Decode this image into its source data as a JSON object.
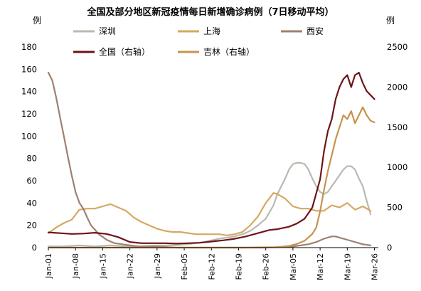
{
  "chart_data": {
    "type": "line",
    "title": "全国及部分地区新冠疫情每日新增确诊病例（7日移动平均）",
    "left_unit": "例",
    "right_unit": "例",
    "x_range": [
      "Jan-01",
      "Mar-27"
    ],
    "x_ticks": [
      "Jan-01",
      "Jan-08",
      "Jan-15",
      "Jan-22",
      "Jan-29",
      "Feb-05",
      "Feb-12",
      "Feb-19",
      "Feb-26",
      "Mar-05",
      "Mar-12",
      "Mar-19",
      "Mar-26"
    ],
    "y_left": {
      "min": 0,
      "max": 180,
      "ticks": [
        0,
        20,
        40,
        60,
        80,
        100,
        120,
        140,
        160,
        180
      ]
    },
    "y_right": {
      "min": 0,
      "max": 2500,
      "ticks": [
        0,
        500,
        1000,
        1500,
        2000,
        2500
      ]
    },
    "legend_position": "top",
    "series": [
      {
        "name": "深圳",
        "axis": "left",
        "color": "#b9b9b0",
        "x": [
          "Jan-01",
          "Jan-05",
          "Jan-09",
          "Jan-13",
          "Jan-17",
          "Jan-21",
          "Jan-25",
          "Jan-29",
          "Feb-02",
          "Feb-06",
          "Feb-10",
          "Feb-14",
          "Feb-18",
          "Feb-20",
          "Feb-22",
          "Feb-24",
          "Feb-26",
          "Feb-28",
          "Mar-01",
          "Mar-03",
          "Mar-04",
          "Mar-05",
          "Mar-06",
          "Mar-07",
          "Mar-08",
          "Mar-09",
          "Mar-10",
          "Mar-11",
          "Mar-12",
          "Mar-13",
          "Mar-14",
          "Mar-15",
          "Mar-16",
          "Mar-17",
          "Mar-18",
          "Mar-19",
          "Mar-20",
          "Mar-21",
          "Mar-22",
          "Mar-23",
          "Mar-24",
          "Mar-25"
        ],
        "values": [
          1,
          1,
          2,
          1,
          2,
          1,
          1,
          2,
          2,
          3,
          5,
          8,
          10,
          12,
          15,
          20,
          26,
          38,
          48,
          62,
          70,
          75,
          76,
          76,
          75,
          70,
          62,
          55,
          50,
          48,
          50,
          55,
          60,
          65,
          70,
          73,
          73,
          70,
          62,
          55,
          42,
          30
        ]
      },
      {
        "name": "上海",
        "axis": "left",
        "color": "#d6a862",
        "x": [
          "Jan-01",
          "Jan-03",
          "Jan-05",
          "Jan-07",
          "Jan-09",
          "Jan-11",
          "Jan-13",
          "Jan-15",
          "Jan-17",
          "Jan-19",
          "Jan-21",
          "Jan-23",
          "Jan-25",
          "Jan-27",
          "Jan-29",
          "Jan-31",
          "Feb-02",
          "Feb-04",
          "Feb-06",
          "Feb-08",
          "Feb-10",
          "Feb-12",
          "Feb-14",
          "Feb-16",
          "Feb-18",
          "Feb-20",
          "Feb-22",
          "Feb-24",
          "Feb-26",
          "Feb-28",
          "Mar-01",
          "Mar-03",
          "Mar-05",
          "Mar-07",
          "Mar-09",
          "Mar-11",
          "Mar-13",
          "Mar-15",
          "Mar-17",
          "Mar-19",
          "Mar-21",
          "Mar-23",
          "Mar-25"
        ],
        "values": [
          13,
          18,
          22,
          25,
          34,
          35,
          35,
          37,
          39,
          36,
          33,
          27,
          23,
          20,
          17,
          15,
          14,
          14,
          13,
          12,
          12,
          12,
          12,
          11,
          12,
          14,
          20,
          28,
          40,
          49,
          48,
          44,
          37,
          35,
          35,
          33,
          33,
          38,
          36,
          40,
          34,
          37,
          33
        ]
      },
      {
        "name": "西安",
        "axis": "left",
        "color": "#9d8170",
        "x": [
          "Jan-01",
          "Jan-02",
          "Jan-03",
          "Jan-04",
          "Jan-05",
          "Jan-06",
          "Jan-07",
          "Jan-08",
          "Jan-09",
          "Jan-10",
          "Jan-11",
          "Jan-12",
          "Jan-13",
          "Jan-14",
          "Jan-16",
          "Jan-18",
          "Jan-20",
          "Jan-22",
          "Jan-24",
          "Jan-28",
          "Feb-03",
          "Feb-10",
          "Feb-18",
          "Feb-26",
          "Mar-05",
          "Mar-09",
          "Mar-11",
          "Mar-13",
          "Mar-15",
          "Mar-16",
          "Mar-17",
          "Mar-19",
          "Mar-21",
          "Mar-23",
          "Mar-25"
        ],
        "values": [
          157,
          150,
          135,
          117,
          100,
          82,
          65,
          50,
          40,
          35,
          27,
          20,
          16,
          12,
          7,
          4,
          3,
          2,
          1,
          1,
          0,
          0,
          0,
          0,
          1,
          3,
          5,
          8,
          10,
          10,
          9,
          7,
          5,
          3,
          2
        ]
      },
      {
        "name": "全国（右轴）",
        "axis": "right",
        "color": "#6e1418",
        "x": [
          "Jan-01",
          "Jan-04",
          "Jan-07",
          "Jan-10",
          "Jan-13",
          "Jan-16",
          "Jan-19",
          "Jan-22",
          "Jan-25",
          "Jan-28",
          "Jan-31",
          "Feb-03",
          "Feb-06",
          "Feb-09",
          "Feb-12",
          "Feb-15",
          "Feb-18",
          "Feb-21",
          "Feb-24",
          "Feb-27",
          "Mar-01",
          "Mar-04",
          "Mar-06",
          "Mar-08",
          "Mar-10",
          "Mar-12",
          "Mar-13",
          "Mar-14",
          "Mar-15",
          "Mar-16",
          "Mar-17",
          "Mar-18",
          "Mar-19",
          "Mar-20",
          "Mar-21",
          "Mar-22",
          "Mar-23",
          "Mar-24",
          "Mar-25",
          "Mar-26"
        ],
        "values": [
          190,
          180,
          170,
          175,
          185,
          170,
          130,
          70,
          55,
          55,
          55,
          50,
          55,
          60,
          75,
          90,
          110,
          140,
          180,
          220,
          230,
          260,
          300,
          360,
          500,
          850,
          1200,
          1450,
          1600,
          1850,
          2000,
          2100,
          2150,
          2000,
          2150,
          2180,
          2050,
          1950,
          1900,
          1850
        ]
      },
      {
        "name": "吉林（右轴）",
        "axis": "right",
        "color": "#c7924e",
        "x": [
          "Jan-01",
          "Feb-20",
          "Mar-01",
          "Mar-04",
          "Mar-06",
          "Mar-08",
          "Mar-10",
          "Mar-11",
          "Mar-12",
          "Mar-13",
          "Mar-14",
          "Mar-15",
          "Mar-16",
          "Mar-17",
          "Mar-18",
          "Mar-19",
          "Mar-20",
          "Mar-21",
          "Mar-22",
          "Mar-23",
          "Mar-24",
          "Mar-25",
          "Mar-26"
        ],
        "values": [
          0,
          0,
          5,
          20,
          45,
          85,
          170,
          250,
          450,
          720,
          950,
          1150,
          1350,
          1500,
          1650,
          1600,
          1700,
          1550,
          1650,
          1750,
          1650,
          1580,
          1560
        ]
      }
    ]
  }
}
